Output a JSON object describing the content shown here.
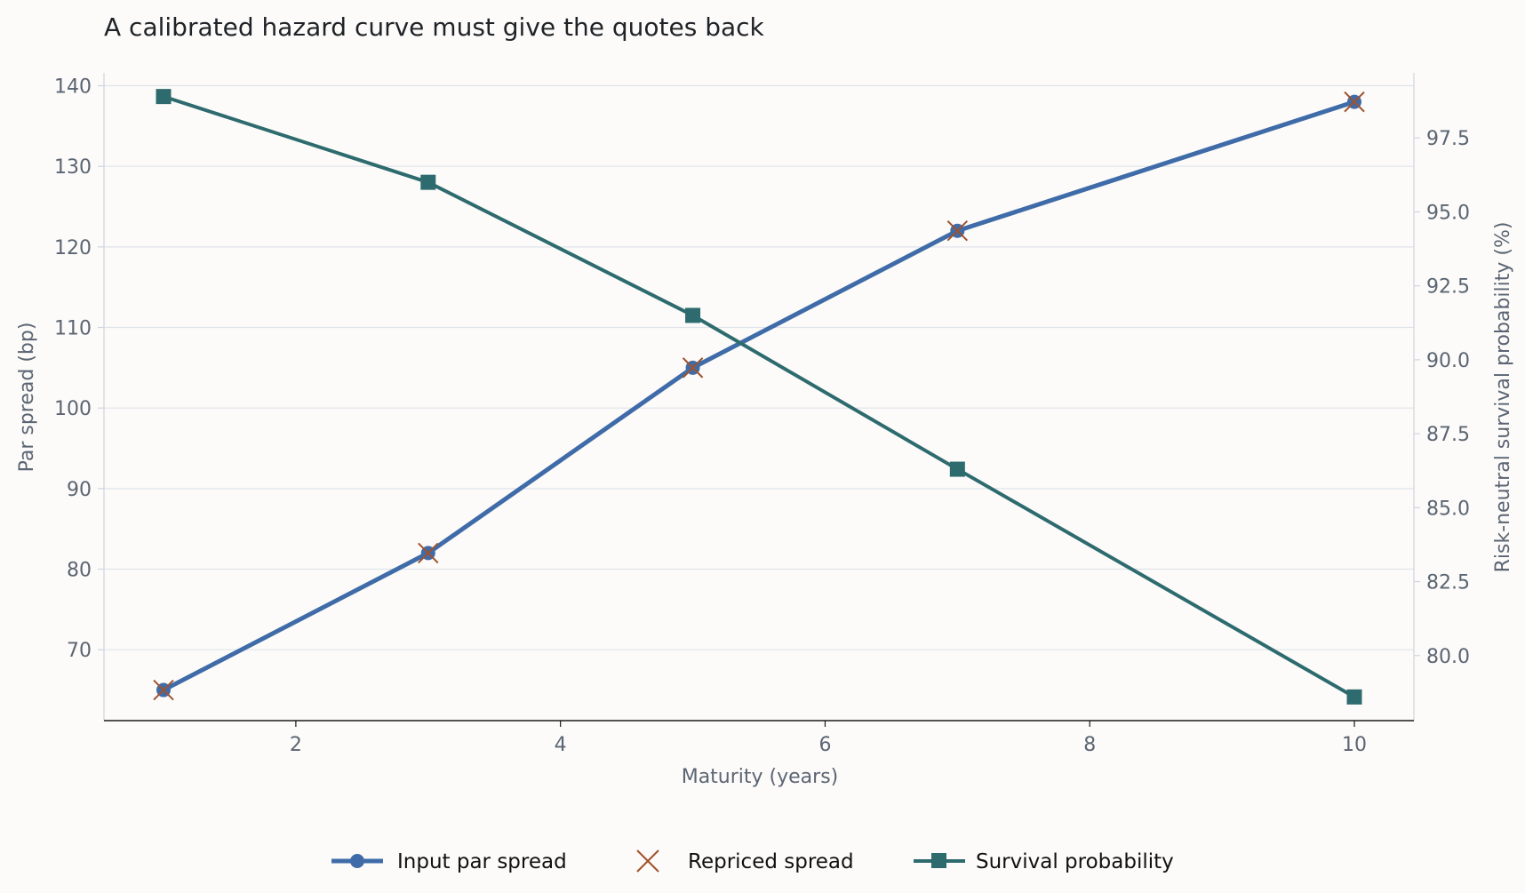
{
  "chart_data": {
    "type": "line",
    "title": "A calibrated hazard curve must give the quotes back",
    "xlabel": "Maturity (years)",
    "ylabel": "Par spread (bp)",
    "y2label": "Risk-neutral survival probability (%)",
    "xlim": [
      0.55,
      10.45
    ],
    "ylim": [
      61.2,
      141.6
    ],
    "y2lim": [
      77.8,
      99.7
    ],
    "xticks": [
      2,
      4,
      6,
      8,
      10
    ],
    "yticks": [
      70,
      80,
      90,
      100,
      110,
      120,
      130,
      140
    ],
    "y2ticks": [
      80.0,
      82.5,
      85.0,
      87.5,
      90.0,
      92.5,
      95.0,
      97.5
    ],
    "grid": true,
    "legend_position": "bottom-center",
    "x": [
      1,
      3,
      5,
      7,
      10
    ],
    "series": [
      {
        "name": "Input par spread",
        "axis": "left",
        "values": [
          65,
          82,
          105,
          122,
          138
        ],
        "color": "#3f6ca8",
        "marker": "circle",
        "line": true
      },
      {
        "name": "Repriced spread",
        "axis": "left",
        "values": [
          65,
          82,
          105,
          122,
          138
        ],
        "color": "#a0522d",
        "marker": "x",
        "line": false
      },
      {
        "name": "Survival probability",
        "axis": "right",
        "values": [
          98.9,
          96.0,
          91.5,
          86.3,
          78.6
        ],
        "color": "#2e6b6e",
        "marker": "square",
        "line": true
      }
    ]
  }
}
